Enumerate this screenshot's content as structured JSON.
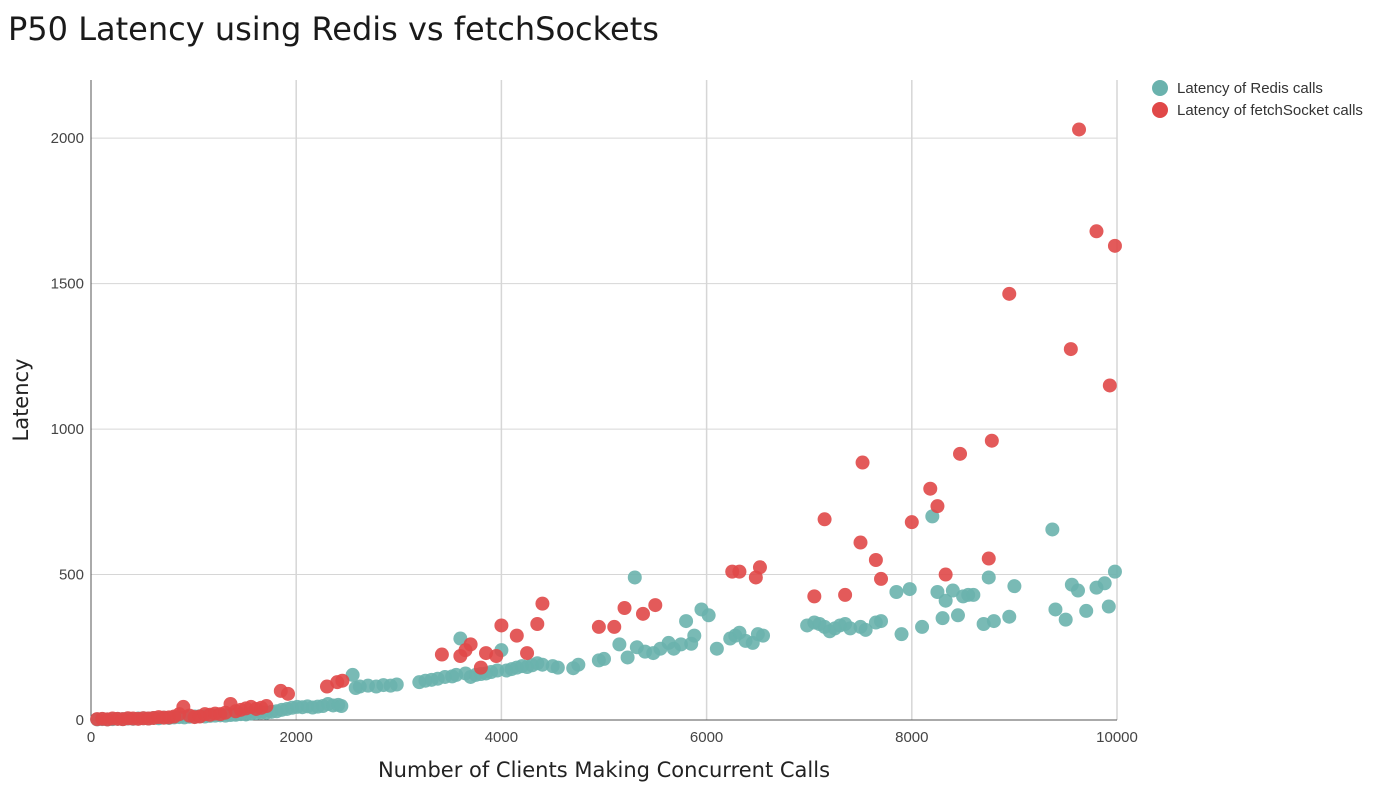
{
  "chart_data": {
    "type": "scatter",
    "title": "P50 Latency using Redis vs fetchSockets",
    "xlabel": "Number of Clients Making Concurrent Calls",
    "ylabel": "Latency",
    "xlim": [
      0,
      10000
    ],
    "ylim": [
      0,
      2200
    ],
    "xticks": [
      0,
      2000,
      4000,
      6000,
      8000,
      10000
    ],
    "yticks": [
      0,
      500,
      1000,
      1500,
      2000
    ],
    "grid": true,
    "legend_position": "top-right",
    "series": [
      {
        "name": "Latency of Redis calls",
        "color": "#6ab2ad",
        "points": [
          [
            60,
            2
          ],
          [
            110,
            3
          ],
          [
            160,
            2
          ],
          [
            210,
            3
          ],
          [
            260,
            4
          ],
          [
            310,
            3
          ],
          [
            360,
            5
          ],
          [
            410,
            4
          ],
          [
            460,
            5
          ],
          [
            510,
            6
          ],
          [
            560,
            5
          ],
          [
            610,
            7
          ],
          [
            660,
            6
          ],
          [
            710,
            8
          ],
          [
            760,
            7
          ],
          [
            810,
            9
          ],
          [
            860,
            10
          ],
          [
            910,
            9
          ],
          [
            960,
            11
          ],
          [
            1010,
            12
          ],
          [
            1060,
            13
          ],
          [
            1110,
            12
          ],
          [
            1160,
            14
          ],
          [
            1210,
            15
          ],
          [
            1260,
            16
          ],
          [
            1310,
            15
          ],
          [
            1360,
            17
          ],
          [
            1410,
            18
          ],
          [
            1460,
            20
          ],
          [
            1510,
            19
          ],
          [
            1560,
            22
          ],
          [
            1610,
            24
          ],
          [
            1660,
            26
          ],
          [
            1710,
            25
          ],
          [
            1760,
            28
          ],
          [
            1810,
            30
          ],
          [
            1860,
            35
          ],
          [
            1910,
            38
          ],
          [
            1960,
            42
          ],
          [
            2010,
            45
          ],
          [
            2060,
            44
          ],
          [
            2110,
            47
          ],
          [
            2160,
            43
          ],
          [
            2210,
            46
          ],
          [
            2260,
            48
          ],
          [
            2310,
            55
          ],
          [
            2360,
            50
          ],
          [
            2410,
            52
          ],
          [
            2440,
            48
          ],
          [
            2550,
            155
          ],
          [
            2580,
            110
          ],
          [
            2620,
            115
          ],
          [
            2700,
            118
          ],
          [
            2780,
            115
          ],
          [
            2850,
            120
          ],
          [
            2920,
            118
          ],
          [
            2980,
            122
          ],
          [
            3200,
            130
          ],
          [
            3260,
            135
          ],
          [
            3320,
            138
          ],
          [
            3380,
            142
          ],
          [
            3450,
            148
          ],
          [
            3520,
            150
          ],
          [
            3560,
            155
          ],
          [
            3600,
            280
          ],
          [
            3650,
            160
          ],
          [
            3700,
            148
          ],
          [
            3750,
            155
          ],
          [
            3800,
            158
          ],
          [
            3850,
            160
          ],
          [
            3900,
            165
          ],
          [
            3960,
            170
          ],
          [
            4000,
            240
          ],
          [
            4050,
            170
          ],
          [
            4100,
            175
          ],
          [
            4150,
            180
          ],
          [
            4200,
            185
          ],
          [
            4250,
            182
          ],
          [
            4300,
            188
          ],
          [
            4350,
            195
          ],
          [
            4400,
            190
          ],
          [
            4500,
            185
          ],
          [
            4550,
            180
          ],
          [
            4700,
            178
          ],
          [
            4750,
            190
          ],
          [
            4950,
            205
          ],
          [
            5000,
            210
          ],
          [
            5150,
            260
          ],
          [
            5230,
            215
          ],
          [
            5300,
            490
          ],
          [
            5320,
            250
          ],
          [
            5400,
            235
          ],
          [
            5480,
            230
          ],
          [
            5550,
            245
          ],
          [
            5630,
            265
          ],
          [
            5680,
            245
          ],
          [
            5750,
            260
          ],
          [
            5800,
            340
          ],
          [
            5850,
            262
          ],
          [
            5880,
            290
          ],
          [
            5950,
            380
          ],
          [
            6020,
            360
          ],
          [
            6100,
            245
          ],
          [
            6230,
            280
          ],
          [
            6280,
            290
          ],
          [
            6320,
            300
          ],
          [
            6380,
            272
          ],
          [
            6450,
            265
          ],
          [
            6500,
            295
          ],
          [
            6550,
            290
          ],
          [
            6980,
            325
          ],
          [
            7050,
            335
          ],
          [
            7100,
            330
          ],
          [
            7150,
            320
          ],
          [
            7200,
            305
          ],
          [
            7250,
            315
          ],
          [
            7300,
            325
          ],
          [
            7350,
            330
          ],
          [
            7400,
            315
          ],
          [
            7500,
            320
          ],
          [
            7550,
            310
          ],
          [
            7650,
            335
          ],
          [
            7700,
            340
          ],
          [
            7850,
            440
          ],
          [
            7900,
            295
          ],
          [
            7980,
            450
          ],
          [
            8100,
            320
          ],
          [
            8200,
            700
          ],
          [
            8250,
            440
          ],
          [
            8300,
            350
          ],
          [
            8330,
            410
          ],
          [
            8400,
            445
          ],
          [
            8450,
            360
          ],
          [
            8500,
            425
          ],
          [
            8550,
            430
          ],
          [
            8600,
            430
          ],
          [
            8700,
            330
          ],
          [
            8750,
            490
          ],
          [
            8800,
            340
          ],
          [
            8950,
            355
          ],
          [
            9000,
            460
          ],
          [
            9370,
            655
          ],
          [
            9400,
            380
          ],
          [
            9500,
            345
          ],
          [
            9560,
            465
          ],
          [
            9620,
            445
          ],
          [
            9700,
            375
          ],
          [
            9800,
            455
          ],
          [
            9880,
            470
          ],
          [
            9920,
            390
          ],
          [
            9980,
            510
          ]
        ]
      },
      {
        "name": "Latency of fetchSocket calls",
        "color": "#e04848",
        "points": [
          [
            60,
            3
          ],
          [
            110,
            4
          ],
          [
            160,
            2
          ],
          [
            210,
            5
          ],
          [
            260,
            4
          ],
          [
            310,
            3
          ],
          [
            360,
            6
          ],
          [
            410,
            5
          ],
          [
            460,
            4
          ],
          [
            510,
            6
          ],
          [
            560,
            5
          ],
          [
            610,
            7
          ],
          [
            660,
            10
          ],
          [
            710,
            8
          ],
          [
            760,
            9
          ],
          [
            810,
            12
          ],
          [
            860,
            20
          ],
          [
            900,
            45
          ],
          [
            960,
            15
          ],
          [
            1010,
            10
          ],
          [
            1060,
            12
          ],
          [
            1110,
            20
          ],
          [
            1160,
            18
          ],
          [
            1210,
            22
          ],
          [
            1260,
            20
          ],
          [
            1310,
            25
          ],
          [
            1360,
            55
          ],
          [
            1410,
            30
          ],
          [
            1460,
            35
          ],
          [
            1510,
            40
          ],
          [
            1560,
            45
          ],
          [
            1610,
            38
          ],
          [
            1660,
            42
          ],
          [
            1710,
            48
          ],
          [
            1850,
            100
          ],
          [
            1920,
            90
          ],
          [
            2300,
            115
          ],
          [
            2400,
            130
          ],
          [
            2450,
            135
          ],
          [
            3420,
            225
          ],
          [
            3600,
            220
          ],
          [
            3650,
            240
          ],
          [
            3700,
            260
          ],
          [
            3800,
            180
          ],
          [
            3850,
            230
          ],
          [
            3950,
            220
          ],
          [
            4000,
            325
          ],
          [
            4150,
            290
          ],
          [
            4250,
            230
          ],
          [
            4350,
            330
          ],
          [
            4400,
            400
          ],
          [
            4950,
            320
          ],
          [
            5100,
            320
          ],
          [
            5200,
            385
          ],
          [
            5380,
            365
          ],
          [
            5500,
            395
          ],
          [
            6250,
            510
          ],
          [
            6320,
            510
          ],
          [
            6480,
            490
          ],
          [
            6520,
            525
          ],
          [
            7050,
            425
          ],
          [
            7150,
            690
          ],
          [
            7350,
            430
          ],
          [
            7500,
            610
          ],
          [
            7520,
            885
          ],
          [
            7650,
            550
          ],
          [
            7700,
            485
          ],
          [
            8000,
            680
          ],
          [
            8180,
            795
          ],
          [
            8250,
            735
          ],
          [
            8330,
            500
          ],
          [
            8470,
            915
          ],
          [
            8750,
            555
          ],
          [
            8780,
            960
          ],
          [
            8950,
            1465
          ],
          [
            9550,
            1275
          ],
          [
            9630,
            2030
          ],
          [
            9800,
            1680
          ],
          [
            9930,
            1150
          ],
          [
            9980,
            1630
          ]
        ]
      }
    ]
  }
}
